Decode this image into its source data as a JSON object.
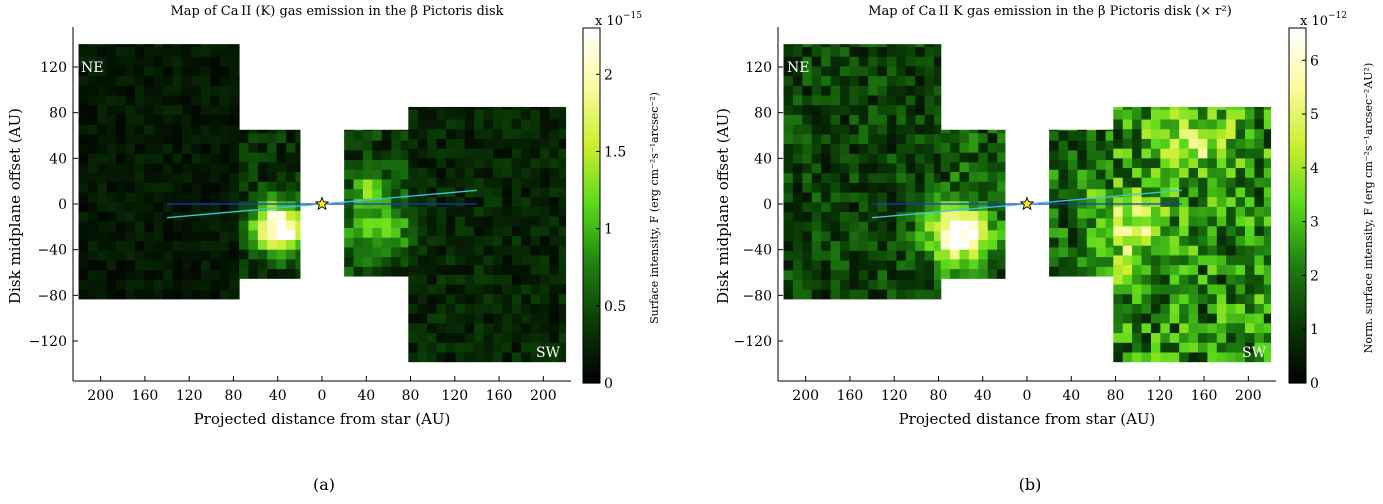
{
  "chart_data": [
    {
      "panel_label": "(a)",
      "type": "heatmap",
      "title_text": "Map of Ca II (K) gas emission in the β Pictoris disk",
      "xlabel": "Projected distance from star (AU)",
      "ylabel": "Disk midplane offset (AU)",
      "x_tick_labels": [
        "200",
        "160",
        "120",
        "80",
        "40",
        "0",
        "40",
        "80",
        "120",
        "160",
        "200"
      ],
      "x_tick_values": [
        -200,
        -160,
        -120,
        -80,
        -40,
        0,
        40,
        80,
        120,
        160,
        200
      ],
      "y_tick_labels": [
        "120",
        "80",
        "40",
        "0",
        "−40",
        "−80",
        "−120"
      ],
      "y_tick_values": [
        120,
        80,
        40,
        0,
        -40,
        -80,
        -120
      ],
      "xlim": [
        -225,
        225
      ],
      "ylim": [
        -155,
        155
      ],
      "corner_labels": [
        "NE",
        "SW"
      ],
      "colorbar": {
        "multiplier": "x 10",
        "exponent": "−15",
        "label": "Surface intensity, F (erg cm⁻²s⁻¹arcsec⁻²)",
        "tick_labels": [
          "0",
          "0.5",
          "1",
          "1.5",
          "2"
        ],
        "tick_values": [
          0,
          0.5,
          1,
          1.5,
          2
        ],
        "range": [
          0,
          2.3
        ],
        "colormap": [
          "#000000",
          "#0a3a05",
          "#1f8010",
          "#57d81a",
          "#c9ee2e",
          "#fbfb9e",
          "#ffffff"
        ]
      },
      "regions": [
        {
          "x": [
            -220,
            -75
          ],
          "y": [
            -83,
            140
          ],
          "level": 0.18
        },
        {
          "x": [
            -75,
            -20
          ],
          "y": [
            -65,
            65
          ],
          "level": 0.35
        },
        {
          "x": [
            20,
            78
          ],
          "y": [
            -63,
            65
          ],
          "level": 0.45
        },
        {
          "x": [
            78,
            220
          ],
          "y": [
            -138,
            85
          ],
          "level": 0.28
        }
      ],
      "hotspots": [
        {
          "x": -38,
          "y": -20,
          "amp": 2.25,
          "sx": 16,
          "sy": 15
        },
        {
          "x": 42,
          "y": 15,
          "amp": 0.9,
          "sx": 10,
          "sy": 8
        },
        {
          "x": 50,
          "y": -20,
          "amp": 0.8,
          "sx": 22,
          "sy": 18
        }
      ],
      "disk_lines": [
        {
          "name": "midplane",
          "color": "#2233cc",
          "x": [
            -140,
            140
          ],
          "y": [
            0,
            0
          ]
        },
        {
          "name": "warp",
          "color": "#3fc6e0",
          "x": [
            -140,
            140
          ],
          "y": [
            -12,
            12
          ]
        }
      ],
      "star": {
        "x": 0,
        "y": 0,
        "color": "#ffee22"
      }
    },
    {
      "panel_label": "(b)",
      "type": "heatmap",
      "title_text": "Map of Ca II K gas emission in the β Pictoris disk (× r²)",
      "xlabel": "Projected distance from star (AU)",
      "ylabel": "Disk midplane offset (AU)",
      "x_tick_labels": [
        "200",
        "160",
        "120",
        "80",
        "40",
        "0",
        "40",
        "80",
        "120",
        "160",
        "200"
      ],
      "x_tick_values": [
        -200,
        -160,
        -120,
        -80,
        -40,
        0,
        40,
        80,
        120,
        160,
        200
      ],
      "y_tick_labels": [
        "120",
        "80",
        "40",
        "0",
        "−40",
        "−80",
        "−120"
      ],
      "y_tick_values": [
        120,
        80,
        40,
        0,
        -40,
        -80,
        -120
      ],
      "xlim": [
        -225,
        225
      ],
      "ylim": [
        -155,
        155
      ],
      "corner_labels": [
        "NE",
        "SW"
      ],
      "colorbar": {
        "multiplier": "x 10",
        "exponent": "−12",
        "label": "Norm. surface intensity, F (erg cm⁻²s⁻¹arcsec⁻²AU²)",
        "tick_labels": [
          "0",
          "1",
          "2",
          "3",
          "4",
          "5",
          "6"
        ],
        "tick_values": [
          0,
          1,
          2,
          3,
          4,
          5,
          6
        ],
        "range": [
          0,
          6.6
        ],
        "colormap": [
          "#000000",
          "#0a3a05",
          "#1f8010",
          "#57d81a",
          "#c9ee2e",
          "#fbfb9e",
          "#ffffff"
        ]
      },
      "regions": [
        {
          "x": [
            -220,
            -78
          ],
          "y": [
            -83,
            140
          ],
          "level": 1.4
        },
        {
          "x": [
            -78,
            -20
          ],
          "y": [
            -65,
            65
          ],
          "level": 1.8
        },
        {
          "x": [
            20,
            78
          ],
          "y": [
            -63,
            65
          ],
          "level": 2.0
        },
        {
          "x": [
            78,
            220
          ],
          "y": [
            -138,
            85
          ],
          "level": 2.6
        }
      ],
      "hotspots": [
        {
          "x": -62,
          "y": -25,
          "amp": 5.5,
          "sx": 20,
          "sy": 17
        },
        {
          "x": 95,
          "y": -25,
          "amp": 2.3,
          "sx": 22,
          "sy": 24
        },
        {
          "x": 155,
          "y": 55,
          "amp": 2.0,
          "sx": 28,
          "sy": 20
        },
        {
          "x": 55,
          "y": 15,
          "amp": 1.3,
          "sx": 10,
          "sy": 8
        }
      ],
      "disk_lines": [
        {
          "name": "midplane",
          "color": "#2233cc",
          "x": [
            -140,
            140
          ],
          "y": [
            0,
            0
          ]
        },
        {
          "name": "warp",
          "color": "#3fc6e0",
          "x": [
            -140,
            140
          ],
          "y": [
            -12,
            12
          ]
        }
      ],
      "star": {
        "x": 0,
        "y": 0,
        "color": "#ffee22"
      }
    }
  ]
}
